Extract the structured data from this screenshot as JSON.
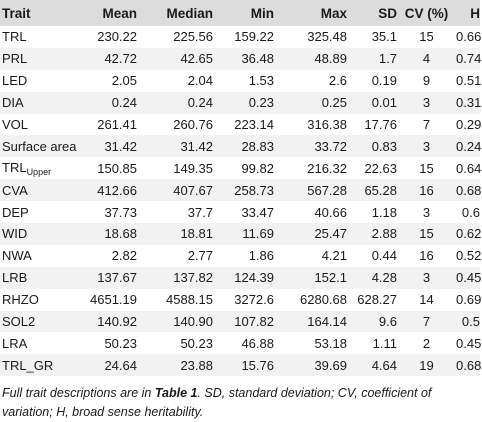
{
  "headers": [
    "Trait",
    "Mean",
    "Median",
    "Min",
    "Max",
    "SD",
    "CV (%)",
    "H"
  ],
  "rows": [
    {
      "trait": "TRL",
      "sub": "",
      "mean": "230.22",
      "median": "225.56",
      "min": "159.22",
      "max": "325.48",
      "sd": "35.1",
      "cv": "15",
      "h": "0.66"
    },
    {
      "trait": "PRL",
      "sub": "",
      "mean": "42.72",
      "median": "42.65",
      "min": "36.48",
      "max": "48.89",
      "sd": "1.7",
      "cv": "4",
      "h": "0.74"
    },
    {
      "trait": "LED",
      "sub": "",
      "mean": "2.05",
      "median": "2.04",
      "min": "1.53",
      "max": "2.6",
      "sd": "0.19",
      "cv": "9",
      "h": "0.51"
    },
    {
      "trait": "DIA",
      "sub": "",
      "mean": "0.24",
      "median": "0.24",
      "min": "0.23",
      "max": "0.25",
      "sd": "0.01",
      "cv": "3",
      "h": "0.31"
    },
    {
      "trait": "VOL",
      "sub": "",
      "mean": "261.41",
      "median": "260.76",
      "min": "223.14",
      "max": "316.38",
      "sd": "17.76",
      "cv": "7",
      "h": "0.29"
    },
    {
      "trait": "Surface area",
      "sub": "",
      "mean": "31.42",
      "median": "31.42",
      "min": "28.83",
      "max": "33.72",
      "sd": "0.83",
      "cv": "3",
      "h": "0.24"
    },
    {
      "trait": "TRL",
      "sub": "Upper",
      "mean": "150.85",
      "median": "149.35",
      "min": "99.82",
      "max": "216.32",
      "sd": "22.63",
      "cv": "15",
      "h": "0.64"
    },
    {
      "trait": "CVA",
      "sub": "",
      "mean": "412.66",
      "median": "407.67",
      "min": "258.73",
      "max": "567.28",
      "sd": "65.28",
      "cv": "16",
      "h": "0.68"
    },
    {
      "trait": "DEP",
      "sub": "",
      "mean": "37.73",
      "median": "37.7",
      "min": "33.47",
      "max": "40.66",
      "sd": "1.18",
      "cv": "3",
      "h": "0.6"
    },
    {
      "trait": "WID",
      "sub": "",
      "mean": "18.68",
      "median": "18.81",
      "min": "11.69",
      "max": "25.47",
      "sd": "2.88",
      "cv": "15",
      "h": "0.62"
    },
    {
      "trait": "NWA",
      "sub": "",
      "mean": "2.82",
      "median": "2.77",
      "min": "1.86",
      "max": "4.21",
      "sd": "0.44",
      "cv": "16",
      "h": "0.52"
    },
    {
      "trait": "LRB",
      "sub": "",
      "mean": "137.67",
      "median": "137.82",
      "min": "124.39",
      "max": "152.1",
      "sd": "4.28",
      "cv": "3",
      "h": "0.45"
    },
    {
      "trait": "RHZO",
      "sub": "",
      "mean": "4651.19",
      "median": "4588.15",
      "min": "3272.6",
      "max": "6280.68",
      "sd": "628.27",
      "cv": "14",
      "h": "0.69"
    },
    {
      "trait": "SOL2",
      "sub": "",
      "mean": "140.92",
      "median": "140.90",
      "min": "107.82",
      "max": "164.14",
      "sd": "9.6",
      "cv": "7",
      "h": "0.5"
    },
    {
      "trait": "LRA",
      "sub": "",
      "mean": "50.23",
      "median": "50.23",
      "min": "46.88",
      "max": "53.18",
      "sd": "1.11",
      "cv": "2",
      "h": "0.45"
    },
    {
      "trait": "TRL_GR",
      "sub": "",
      "mean": "24.64",
      "median": "23.88",
      "min": "15.76",
      "max": "39.69",
      "sd": "4.64",
      "cv": "19",
      "h": "0.68"
    }
  ],
  "footer": {
    "prefix": "Full trait descriptions are in ",
    "table_ref": "Table 1",
    "suffix": ". SD, standard deviation; CV, coefficient of variation; H, broad sense heritability."
  }
}
